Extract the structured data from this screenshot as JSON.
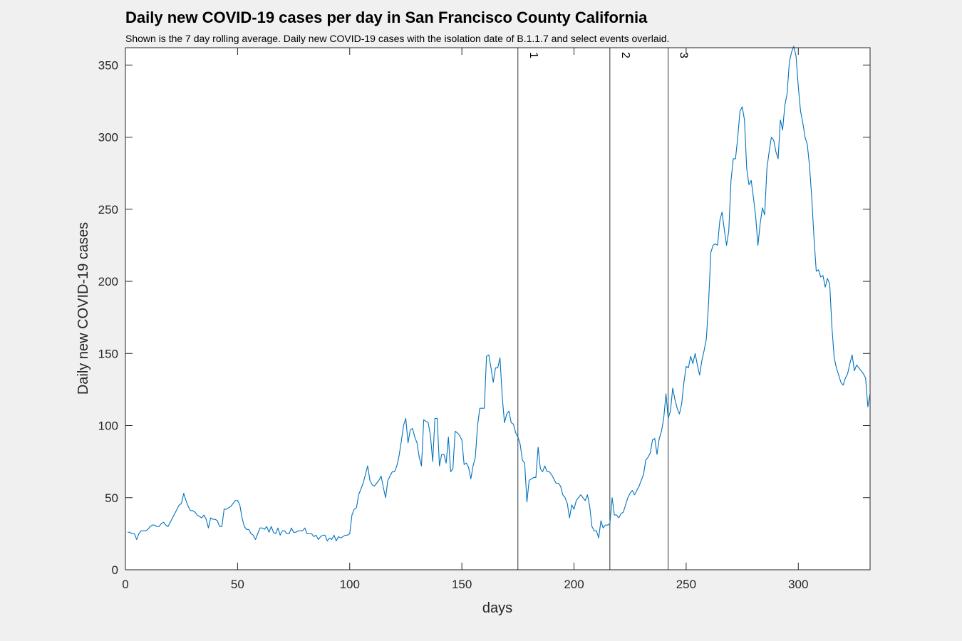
{
  "chart_data": {
    "type": "line",
    "title": "Daily new COVID-19 cases per day in San Francisco County California",
    "subtitle": "Shown is the 7 day rolling average. Daily new COVID-19 cases with the isolation date of B.1.1.7 and select events overlaid.",
    "xlabel": "days",
    "ylabel": "Daily new COVID-19 cases",
    "xlim": [
      0,
      332
    ],
    "ylim": [
      0,
      362
    ],
    "xticks": [
      0,
      50,
      100,
      150,
      200,
      250,
      300
    ],
    "yticks": [
      0,
      50,
      100,
      150,
      200,
      250,
      300,
      350
    ],
    "grid": false,
    "line_color": "#0072BD",
    "events": [
      {
        "label": "1",
        "x": 175
      },
      {
        "label": "2",
        "x": 216
      },
      {
        "label": "3",
        "x": 242
      }
    ],
    "series": [
      {
        "points": [
          [
            1,
            26
          ],
          [
            2,
            26
          ],
          [
            3,
            25
          ],
          [
            4,
            25
          ],
          [
            5,
            21
          ],
          [
            6,
            25
          ],
          [
            7,
            27
          ],
          [
            8,
            27
          ],
          [
            9,
            27
          ],
          [
            10,
            28
          ],
          [
            11,
            30
          ],
          [
            12,
            31
          ],
          [
            13,
            31
          ],
          [
            14,
            30
          ],
          [
            15,
            30
          ],
          [
            16,
            32
          ],
          [
            17,
            33
          ],
          [
            18,
            31
          ],
          [
            19,
            30
          ],
          [
            20,
            33
          ],
          [
            21,
            36
          ],
          [
            22,
            39
          ],
          [
            23,
            42
          ],
          [
            24,
            45
          ],
          [
            25,
            46
          ],
          [
            26,
            53
          ],
          [
            27,
            48
          ],
          [
            28,
            44
          ],
          [
            29,
            41
          ],
          [
            30,
            41
          ],
          [
            31,
            40
          ],
          [
            32,
            38
          ],
          [
            33,
            37
          ],
          [
            34,
            36
          ],
          [
            35,
            38
          ],
          [
            36,
            35
          ],
          [
            37,
            29
          ],
          [
            38,
            36
          ],
          [
            39,
            35
          ],
          [
            40,
            35
          ],
          [
            41,
            34
          ],
          [
            42,
            30
          ],
          [
            43,
            30
          ],
          [
            44,
            42
          ],
          [
            45,
            42
          ],
          [
            46,
            43
          ],
          [
            47,
            44
          ],
          [
            48,
            46
          ],
          [
            49,
            48
          ],
          [
            50,
            48
          ],
          [
            51,
            45
          ],
          [
            52,
            36
          ],
          [
            53,
            30
          ],
          [
            54,
            28
          ],
          [
            55,
            28
          ],
          [
            56,
            25
          ],
          [
            57,
            24
          ],
          [
            58,
            21
          ],
          [
            59,
            25
          ],
          [
            60,
            29
          ],
          [
            61,
            29
          ],
          [
            62,
            28
          ],
          [
            63,
            30
          ],
          [
            64,
            26
          ],
          [
            65,
            30
          ],
          [
            66,
            26
          ],
          [
            67,
            25
          ],
          [
            68,
            29
          ],
          [
            69,
            24
          ],
          [
            70,
            27
          ],
          [
            71,
            27
          ],
          [
            72,
            25
          ],
          [
            73,
            25
          ],
          [
            74,
            29
          ],
          [
            75,
            26
          ],
          [
            76,
            26
          ],
          [
            77,
            27
          ],
          [
            78,
            27
          ],
          [
            79,
            27
          ],
          [
            80,
            29
          ],
          [
            81,
            25
          ],
          [
            82,
            25
          ],
          [
            83,
            25
          ],
          [
            84,
            23
          ],
          [
            85,
            24
          ],
          [
            86,
            21
          ],
          [
            87,
            23
          ],
          [
            88,
            24
          ],
          [
            89,
            24
          ],
          [
            90,
            20
          ],
          [
            91,
            22
          ],
          [
            92,
            21
          ],
          [
            93,
            24
          ],
          [
            94,
            20
          ],
          [
            95,
            23
          ],
          [
            96,
            22
          ],
          [
            97,
            23
          ],
          [
            98,
            24
          ],
          [
            99,
            24
          ],
          [
            100,
            25
          ],
          [
            101,
            38
          ],
          [
            102,
            42
          ],
          [
            103,
            43
          ],
          [
            104,
            52
          ],
          [
            105,
            56
          ],
          [
            106,
            60
          ],
          [
            107,
            66
          ],
          [
            108,
            72
          ],
          [
            109,
            62
          ],
          [
            110,
            59
          ],
          [
            111,
            58
          ],
          [
            112,
            60
          ],
          [
            113,
            62
          ],
          [
            114,
            65
          ],
          [
            115,
            57
          ],
          [
            116,
            50
          ],
          [
            117,
            62
          ],
          [
            118,
            65
          ],
          [
            119,
            68
          ],
          [
            120,
            68
          ],
          [
            121,
            72
          ],
          [
            122,
            79
          ],
          [
            123,
            89
          ],
          [
            124,
            100
          ],
          [
            125,
            105
          ],
          [
            126,
            88
          ],
          [
            127,
            97
          ],
          [
            128,
            98
          ],
          [
            129,
            92
          ],
          [
            130,
            88
          ],
          [
            131,
            78
          ],
          [
            132,
            72
          ],
          [
            133,
            104
          ],
          [
            134,
            103
          ],
          [
            135,
            102
          ],
          [
            136,
            93
          ],
          [
            137,
            75
          ],
          [
            138,
            105
          ],
          [
            139,
            105
          ],
          [
            140,
            72
          ],
          [
            141,
            80
          ],
          [
            142,
            80
          ],
          [
            143,
            74
          ],
          [
            144,
            92
          ],
          [
            145,
            68
          ],
          [
            146,
            70
          ],
          [
            147,
            96
          ],
          [
            148,
            95
          ],
          [
            149,
            93
          ],
          [
            150,
            90
          ],
          [
            151,
            73
          ],
          [
            152,
            74
          ],
          [
            153,
            71
          ],
          [
            154,
            63
          ],
          [
            155,
            72
          ],
          [
            156,
            78
          ],
          [
            157,
            100
          ],
          [
            158,
            112
          ],
          [
            159,
            112
          ],
          [
            160,
            112
          ],
          [
            161,
            148
          ],
          [
            162,
            149
          ],
          [
            163,
            140
          ],
          [
            164,
            130
          ],
          [
            165,
            140
          ],
          [
            166,
            140
          ],
          [
            167,
            147
          ],
          [
            168,
            120
          ],
          [
            169,
            102
          ],
          [
            170,
            108
          ],
          [
            171,
            110
          ],
          [
            172,
            102
          ],
          [
            173,
            101
          ],
          [
            174,
            95
          ],
          [
            175,
            92
          ],
          [
            176,
            87
          ],
          [
            177,
            76
          ],
          [
            178,
            74
          ],
          [
            179,
            47
          ],
          [
            180,
            62
          ],
          [
            181,
            63
          ],
          [
            182,
            64
          ],
          [
            183,
            64
          ],
          [
            184,
            85
          ],
          [
            185,
            70
          ],
          [
            186,
            68
          ],
          [
            187,
            72
          ],
          [
            188,
            68
          ],
          [
            189,
            68
          ],
          [
            190,
            66
          ],
          [
            191,
            63
          ],
          [
            192,
            60
          ],
          [
            193,
            60
          ],
          [
            194,
            58
          ],
          [
            195,
            52
          ],
          [
            196,
            50
          ],
          [
            197,
            46
          ],
          [
            198,
            36
          ],
          [
            199,
            45
          ],
          [
            200,
            42
          ],
          [
            201,
            48
          ],
          [
            202,
            50
          ],
          [
            203,
            52
          ],
          [
            204,
            50
          ],
          [
            205,
            48
          ],
          [
            206,
            52
          ],
          [
            207,
            44
          ],
          [
            208,
            30
          ],
          [
            209,
            27
          ],
          [
            210,
            27
          ],
          [
            211,
            22
          ],
          [
            212,
            34
          ],
          [
            213,
            29
          ],
          [
            214,
            31
          ],
          [
            215,
            31
          ],
          [
            216,
            32
          ],
          [
            217,
            50
          ],
          [
            218,
            38
          ],
          [
            219,
            38
          ],
          [
            220,
            36
          ],
          [
            221,
            39
          ],
          [
            222,
            40
          ],
          [
            223,
            45
          ],
          [
            224,
            50
          ],
          [
            225,
            53
          ],
          [
            226,
            55
          ],
          [
            227,
            52
          ],
          [
            228,
            55
          ],
          [
            229,
            58
          ],
          [
            230,
            62
          ],
          [
            231,
            66
          ],
          [
            232,
            76
          ],
          [
            233,
            78
          ],
          [
            234,
            81
          ],
          [
            235,
            90
          ],
          [
            236,
            91
          ],
          [
            237,
            80
          ],
          [
            238,
            91
          ],
          [
            239,
            96
          ],
          [
            240,
            105
          ],
          [
            241,
            122
          ],
          [
            242,
            105
          ],
          [
            243,
            110
          ],
          [
            244,
            126
          ],
          [
            245,
            118
          ],
          [
            246,
            112
          ],
          [
            247,
            108
          ],
          [
            248,
            115
          ],
          [
            249,
            130
          ],
          [
            250,
            141
          ],
          [
            251,
            140
          ],
          [
            252,
            148
          ],
          [
            253,
            143
          ],
          [
            254,
            150
          ],
          [
            255,
            142
          ],
          [
            256,
            135
          ],
          [
            257,
            145
          ],
          [
            258,
            152
          ],
          [
            259,
            160
          ],
          [
            260,
            185
          ],
          [
            261,
            220
          ],
          [
            262,
            225
          ],
          [
            263,
            226
          ],
          [
            264,
            225
          ],
          [
            265,
            242
          ],
          [
            266,
            248
          ],
          [
            267,
            236
          ],
          [
            268,
            225
          ],
          [
            269,
            235
          ],
          [
            270,
            270
          ],
          [
            271,
            285
          ],
          [
            272,
            285
          ],
          [
            273,
            300
          ],
          [
            274,
            318
          ],
          [
            275,
            321
          ],
          [
            276,
            312
          ],
          [
            277,
            278
          ],
          [
            278,
            267
          ],
          [
            279,
            270
          ],
          [
            280,
            258
          ],
          [
            281,
            245
          ],
          [
            282,
            225
          ],
          [
            283,
            240
          ],
          [
            284,
            251
          ],
          [
            285,
            246
          ],
          [
            286,
            278
          ],
          [
            287,
            290
          ],
          [
            288,
            300
          ],
          [
            289,
            298
          ],
          [
            290,
            290
          ],
          [
            291,
            285
          ],
          [
            292,
            312
          ],
          [
            293,
            305
          ],
          [
            294,
            322
          ],
          [
            295,
            330
          ],
          [
            296,
            352
          ],
          [
            297,
            359
          ],
          [
            298,
            363
          ],
          [
            299,
            356
          ],
          [
            300,
            335
          ],
          [
            301,
            318
          ],
          [
            302,
            310
          ],
          [
            303,
            300
          ],
          [
            304,
            295
          ],
          [
            305,
            280
          ],
          [
            306,
            258
          ],
          [
            307,
            230
          ],
          [
            308,
            207
          ],
          [
            309,
            208
          ],
          [
            310,
            203
          ],
          [
            311,
            204
          ],
          [
            312,
            196
          ],
          [
            313,
            202
          ],
          [
            314,
            198
          ],
          [
            315,
            168
          ],
          [
            316,
            147
          ],
          [
            317,
            140
          ],
          [
            318,
            135
          ],
          [
            319,
            130
          ],
          [
            320,
            128
          ],
          [
            321,
            133
          ],
          [
            322,
            136
          ],
          [
            323,
            143
          ],
          [
            324,
            149
          ],
          [
            325,
            138
          ],
          [
            326,
            142
          ],
          [
            327,
            140
          ],
          [
            328,
            138
          ],
          [
            329,
            136
          ],
          [
            330,
            133
          ],
          [
            331,
            113
          ],
          [
            332,
            122
          ]
        ]
      }
    ]
  }
}
